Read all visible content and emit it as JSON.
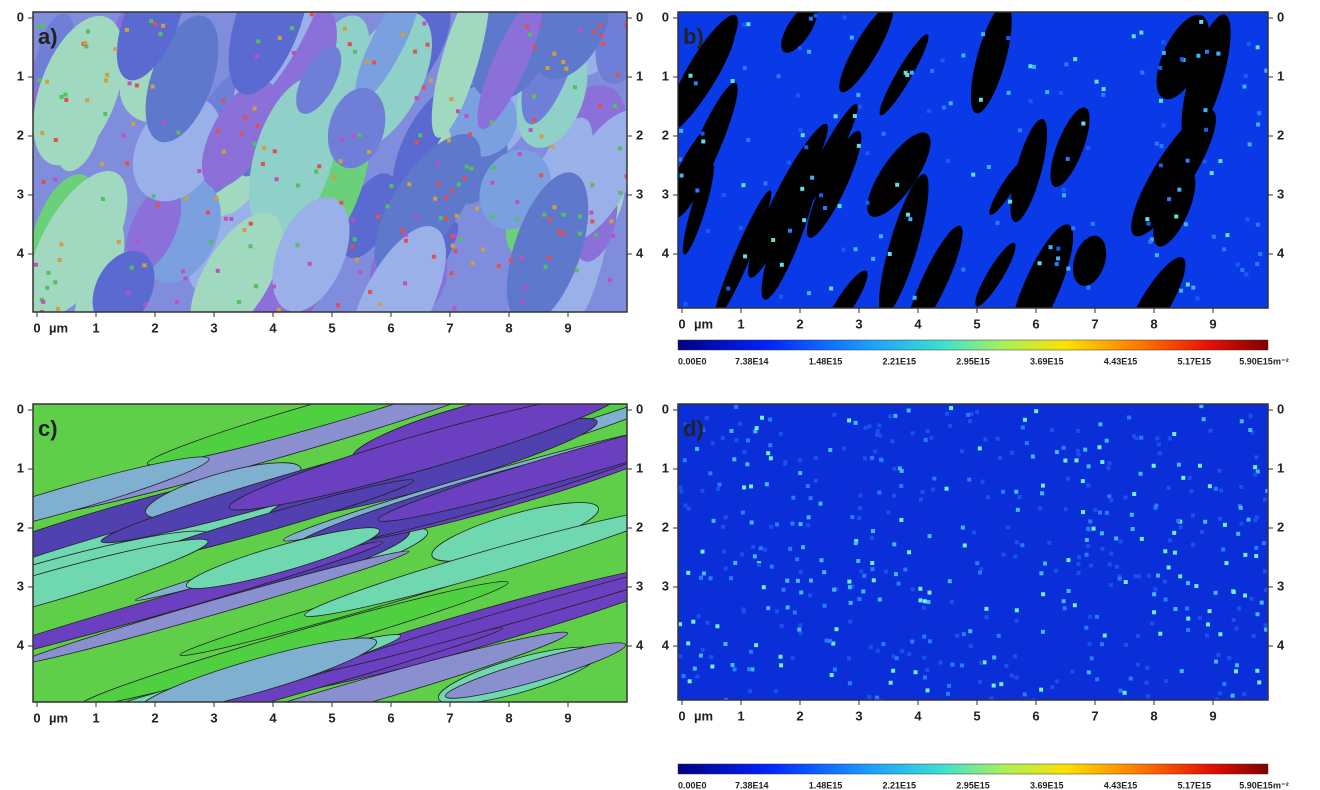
{
  "panels": [
    {
      "label": "a)",
      "x_ticks": [
        0,
        1,
        2,
        3,
        4,
        5,
        6,
        7,
        8,
        9
      ],
      "x_unit": "µm",
      "y_ticks": [
        0,
        1,
        2,
        3,
        4
      ]
    },
    {
      "label": "b)",
      "x_ticks": [
        0,
        1,
        2,
        3,
        4,
        5,
        6,
        7,
        8,
        9
      ],
      "x_unit": "µm",
      "y_ticks": [
        0,
        1,
        2,
        3,
        4
      ]
    },
    {
      "label": "c)",
      "x_ticks": [
        0,
        1,
        2,
        3,
        4,
        5,
        6,
        7,
        8,
        9
      ],
      "x_unit": "µm",
      "y_ticks": [
        0,
        1,
        2,
        3,
        4
      ]
    },
    {
      "label": "d)",
      "x_ticks": [
        0,
        1,
        2,
        3,
        4,
        5,
        6,
        7,
        8,
        9
      ],
      "x_unit": "µm",
      "y_ticks": [
        0,
        1,
        2,
        3,
        4
      ]
    }
  ],
  "colorbars": [
    {
      "labels": [
        "0.00E0",
        "7.38E14",
        "1.48E15",
        "2.21E15",
        "2.95E15",
        "3.69E15",
        "4.43E15",
        "5.17E15",
        "5.90E15"
      ],
      "unit": "m⁻²"
    },
    {
      "labels": [
        "0.00E0",
        "7.38E14",
        "1.48E15",
        "2.21E15",
        "2.95E15",
        "3.69E15",
        "4.43E15",
        "5.17E15",
        "5.90E15"
      ],
      "unit": "m⁻²"
    }
  ]
}
